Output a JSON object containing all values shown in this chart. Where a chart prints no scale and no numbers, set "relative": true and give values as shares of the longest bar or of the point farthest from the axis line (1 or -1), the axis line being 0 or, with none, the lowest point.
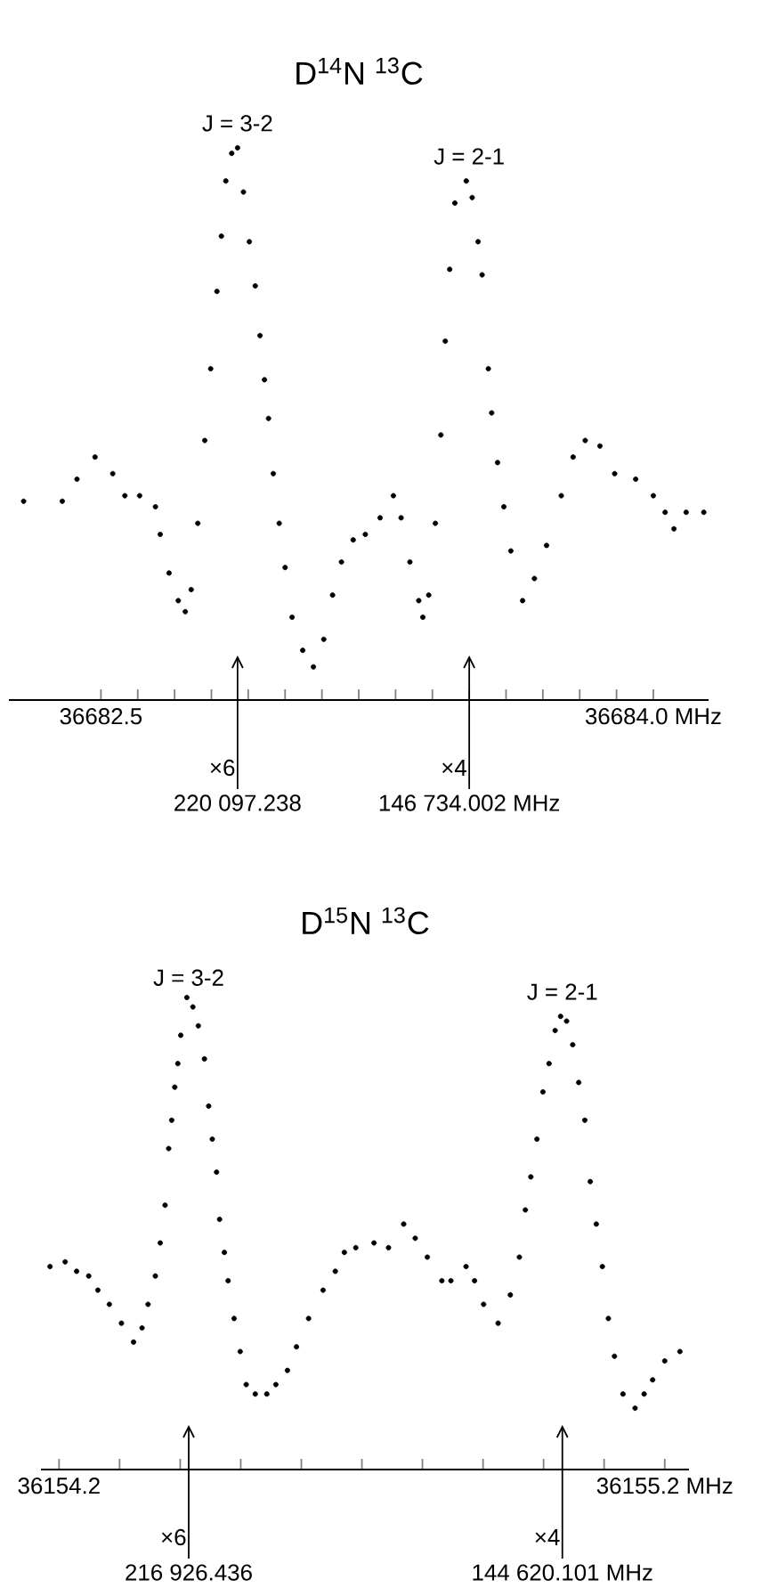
{
  "chart_data": [
    {
      "type": "scatter",
      "title": "D$^{14}$N $^{13}$C",
      "relative": true,
      "x": [
        36682.29,
        36682.395,
        36682.435,
        36682.484,
        36682.532,
        36682.565,
        36682.605,
        36682.648,
        36682.661,
        36682.685,
        36682.71,
        36682.729,
        36682.745,
        36682.763,
        36682.782,
        36682.798,
        36682.815,
        36682.827,
        36682.839,
        36682.855,
        36682.871,
        36682.887,
        36682.903,
        36682.919,
        36682.932,
        36682.944,
        36682.955,
        36682.968,
        36682.984,
        36683.0,
        36683.019,
        36683.048,
        36683.077,
        36683.105,
        36683.129,
        36683.153,
        36683.185,
        36683.218,
        36683.258,
        36683.294,
        36683.315,
        36683.339,
        36683.363,
        36683.374,
        36683.39,
        36683.408,
        36683.423,
        36683.435,
        36683.447,
        36683.461,
        36683.492,
        36683.508,
        36683.524,
        36683.535,
        36683.552,
        36683.561,
        36683.577,
        36683.594,
        36683.613,
        36683.645,
        36683.677,
        36683.71,
        36683.75,
        36683.782,
        36683.815,
        36683.855,
        36683.895,
        36683.952,
        36684.0,
        36684.032,
        36684.056,
        36684.089,
        36684.137
      ],
      "series": [
        {
          "color": "#000000",
          "values": [
            0.36,
            0.36,
            0.4,
            0.44,
            0.41,
            0.37,
            0.37,
            0.35,
            0.3,
            0.23,
            0.18,
            0.16,
            0.2,
            0.32,
            0.47,
            0.6,
            0.74,
            0.84,
            0.94,
            0.99,
            1.0,
            0.92,
            0.83,
            0.75,
            0.66,
            0.58,
            0.51,
            0.41,
            0.32,
            0.24,
            0.15,
            0.09,
            0.06,
            0.11,
            0.19,
            0.25,
            0.29,
            0.3,
            0.33,
            0.37,
            0.33,
            0.25,
            0.18,
            0.15,
            0.19,
            0.32,
            0.48,
            0.65,
            0.78,
            0.9,
            0.94,
            0.91,
            0.83,
            0.77,
            0.6,
            0.52,
            0.43,
            0.35,
            0.27,
            0.18,
            0.22,
            0.28,
            0.37,
            0.44,
            0.47,
            0.46,
            0.41,
            0.4,
            0.37,
            0.34,
            0.31,
            0.34,
            0.34
          ]
        }
      ],
      "xlim": [
        36682.25,
        36684.15
      ],
      "xticks": [
        {
          "value": 36682.5,
          "label": "36682.5"
        },
        {
          "value": 36682.6,
          "label": null
        },
        {
          "value": 36682.7,
          "label": null
        },
        {
          "value": 36682.8,
          "label": null
        },
        {
          "value": 36682.9,
          "label": null
        },
        {
          "value": 36683.0,
          "label": null
        },
        {
          "value": 36683.1,
          "label": null
        },
        {
          "value": 36683.2,
          "label": null
        },
        {
          "value": 36683.3,
          "label": null
        },
        {
          "value": 36683.4,
          "label": null
        },
        {
          "value": 36683.5,
          "label": null
        },
        {
          "value": 36683.6,
          "label": null
        },
        {
          "value": 36683.7,
          "label": null
        },
        {
          "value": 36683.8,
          "label": null
        },
        {
          "value": 36683.9,
          "label": null
        },
        {
          "value": 36684.0,
          "label": "36684.0 MHz"
        }
      ],
      "ref_lines": [
        {
          "axis": "x",
          "value": 36682.871,
          "label": "×6"
        },
        {
          "axis": "x",
          "value": 36683.5,
          "label": "×4"
        }
      ],
      "annotations": [
        {
          "text": "J = 3-2",
          "x": 36682.871,
          "y": 1.0
        },
        {
          "text": "J = 2-1",
          "x": 36683.5,
          "y": 0.94
        },
        "220 097.238",
        "146 734.002 MHz"
      ]
    },
    {
      "type": "scatter",
      "title": "D$^{15}$N $^{13}$C",
      "relative": true,
      "x": [
        36154.185,
        36154.21,
        36154.229,
        36154.249,
        36154.264,
        36154.283,
        36154.303,
        36154.323,
        36154.337,
        36154.347,
        36154.359,
        36154.367,
        36154.375,
        36154.381,
        36154.386,
        36154.391,
        36154.396,
        36154.401,
        36154.411,
        36154.421,
        36154.43,
        36154.44,
        36154.447,
        36154.453,
        36154.46,
        36154.465,
        36154.473,
        36154.479,
        36154.489,
        36154.499,
        36154.509,
        36154.524,
        36154.543,
        36154.558,
        36154.577,
        36154.592,
        36154.612,
        36154.636,
        36154.656,
        36154.671,
        36154.69,
        36154.72,
        36154.744,
        36154.769,
        36154.788,
        36154.808,
        36154.832,
        36154.847,
        36154.872,
        36154.886,
        36154.901,
        36154.925,
        36154.945,
        36154.96,
        36154.97,
        36154.979,
        36154.989,
        36154.999,
        36155.009,
        36155.019,
        36155.028,
        36155.038,
        36155.048,
        36155.058,
        36155.068,
        36155.077,
        36155.087,
        36155.097,
        36155.107,
        36155.117,
        36155.131,
        36155.151,
        36155.166,
        36155.18,
        36155.2,
        36155.225
      ],
      "series": [
        {
          "color": "#000000",
          "values": [
            0.43,
            0.44,
            0.42,
            0.41,
            0.38,
            0.35,
            0.31,
            0.27,
            0.3,
            0.35,
            0.41,
            0.48,
            0.56,
            0.68,
            0.74,
            0.81,
            0.86,
            0.92,
            1.0,
            0.98,
            0.94,
            0.87,
            0.77,
            0.7,
            0.63,
            0.53,
            0.46,
            0.4,
            0.32,
            0.25,
            0.18,
            0.16,
            0.16,
            0.18,
            0.21,
            0.26,
            0.32,
            0.38,
            0.42,
            0.46,
            0.47,
            0.48,
            0.47,
            0.52,
            0.49,
            0.45,
            0.4,
            0.4,
            0.43,
            0.4,
            0.35,
            0.31,
            0.37,
            0.45,
            0.55,
            0.62,
            0.7,
            0.8,
            0.86,
            0.93,
            0.96,
            0.95,
            0.9,
            0.82,
            0.74,
            0.61,
            0.52,
            0.43,
            0.32,
            0.24,
            0.16,
            0.13,
            0.16,
            0.19,
            0.23,
            0.25
          ]
        }
      ],
      "xlim": [
        36154.17,
        36155.24
      ],
      "xticks": [
        {
          "value": 36154.2,
          "label": "36154.2"
        },
        {
          "value": 36154.3,
          "label": null
        },
        {
          "value": 36154.4,
          "label": null
        },
        {
          "value": 36154.5,
          "label": null
        },
        {
          "value": 36154.6,
          "label": null
        },
        {
          "value": 36154.7,
          "label": null
        },
        {
          "value": 36154.8,
          "label": null
        },
        {
          "value": 36154.9,
          "label": null
        },
        {
          "value": 36155.0,
          "label": null
        },
        {
          "value": 36155.1,
          "label": null
        },
        {
          "value": 36155.2,
          "label": "36155.2 MHz"
        }
      ],
      "ref_lines": [
        {
          "axis": "x",
          "value": 36154.414,
          "label": "×6"
        },
        {
          "axis": "x",
          "value": 36155.031,
          "label": "×4"
        }
      ],
      "annotations": [
        {
          "text": "J = 3-2",
          "x": 36154.414,
          "y": 0.99
        },
        {
          "text": "J = 2-1",
          "x": 36155.031,
          "y": 0.96
        },
        "216 926.436",
        "144 620.101 MHz"
      ]
    }
  ]
}
